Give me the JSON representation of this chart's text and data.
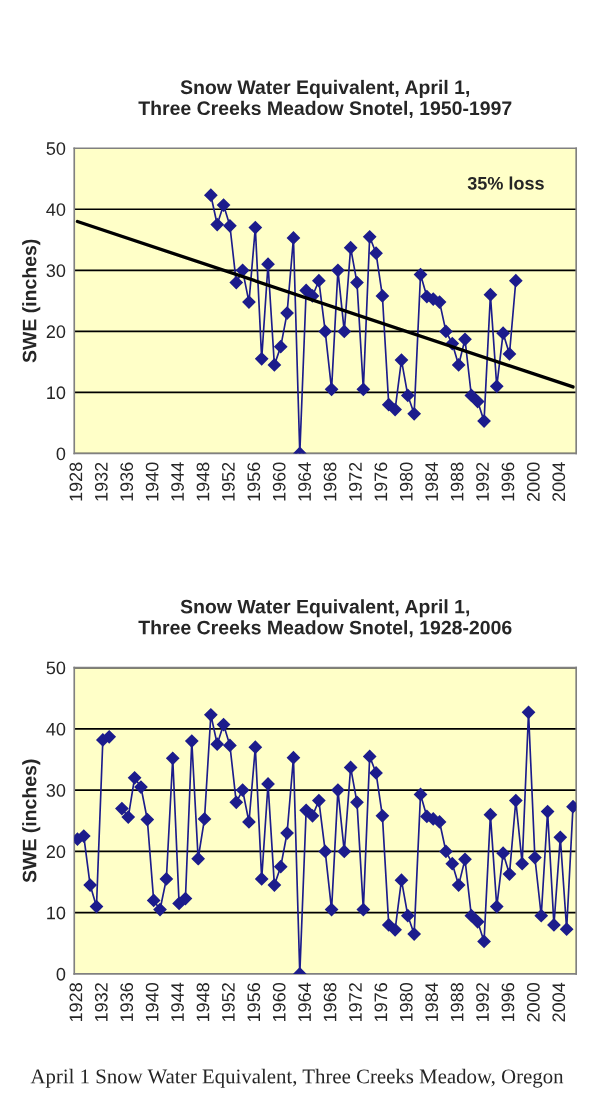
{
  "chart_data": [
    {
      "type": "line",
      "title": "Snow Water Equivalent, April 1,\nThree Creeks Meadow Snotel, 1950-1997",
      "ylabel": "SWE (inches)",
      "xlim": [
        1927.5,
        2006.5
      ],
      "xticks": [
        1928,
        1932,
        1936,
        1940,
        1944,
        1948,
        1952,
        1956,
        1960,
        1964,
        1968,
        1972,
        1976,
        1980,
        1984,
        1988,
        1992,
        1996,
        2000,
        2004
      ],
      "ylim": [
        0,
        50
      ],
      "yticks": [
        0,
        10,
        20,
        30,
        40,
        50
      ],
      "grid": "y",
      "legend": false,
      "annotations": [
        "35% loss"
      ],
      "series": [
        {
          "color": "#1c1c8c",
          "marker": "diamond",
          "x": [
            1949,
            1950,
            1951,
            1952,
            1953,
            1954,
            1955,
            1956,
            1957,
            1958,
            1959,
            1960,
            1961,
            1962,
            1963,
            1964,
            1965,
            1966,
            1967,
            1968,
            1969,
            1970,
            1971,
            1972,
            1973,
            1974,
            1975,
            1976,
            1977,
            1978,
            1979,
            1980,
            1981,
            1982,
            1983,
            1984,
            1985,
            1986,
            1987,
            1988,
            1989,
            1990,
            1991,
            1992,
            1993,
            1994,
            1995,
            1996,
            1997
          ],
          "values": [
            42.3,
            37.5,
            40.7,
            37.3,
            28,
            30,
            24.8,
            37,
            15.5,
            31,
            14.5,
            17.5,
            23,
            35.3,
            0,
            26.7,
            25.8,
            28.3,
            20,
            10.5,
            30,
            20,
            33.7,
            28,
            10.5,
            35.5,
            32.8,
            25.8,
            8,
            7.2,
            15.3,
            9.5,
            6.5,
            29.3,
            25.7,
            25.3,
            24.8,
            20,
            18,
            14.5,
            18.7,
            9.5,
            8.5,
            5.3,
            26,
            11,
            19.7,
            16.3,
            28.3
          ]
        },
        {
          "color": "#000000",
          "marker": "none",
          "x": [
            1928,
            2006
          ],
          "values": [
            38,
            10.9
          ]
        }
      ]
    },
    {
      "type": "line",
      "title": "Snow Water Equivalent, April 1,\nThree Creeks Meadow Snotel, 1928-2006",
      "ylabel": "SWE (inches)",
      "xlim": [
        1927.5,
        2006.5
      ],
      "xticks": [
        1928,
        1932,
        1936,
        1940,
        1944,
        1948,
        1952,
        1956,
        1960,
        1964,
        1968,
        1972,
        1976,
        1980,
        1984,
        1988,
        1992,
        1996,
        2000,
        2004
      ],
      "ylim": [
        0,
        50
      ],
      "yticks": [
        0,
        10,
        20,
        30,
        40,
        50
      ],
      "grid": "y",
      "legend": false,
      "annotations": [
        "April 1 Snow Water Equivalent, Three Creeks Meadow, Oregon"
      ],
      "series": [
        {
          "color": "#1c1c8c",
          "marker": "diamond",
          "x": [
            1928,
            1929,
            1930,
            1931,
            1932,
            1933,
            1934,
            1935,
            1936,
            1937,
            1938,
            1939,
            1940,
            1941,
            1942,
            1943,
            1944,
            1945,
            1946,
            1947,
            1948,
            1949,
            1950,
            1951,
            1952,
            1953,
            1954,
            1955,
            1956,
            1957,
            1958,
            1959,
            1960,
            1961,
            1962,
            1963,
            1964,
            1965,
            1966,
            1967,
            1968,
            1969,
            1970,
            1971,
            1972,
            1973,
            1974,
            1975,
            1976,
            1977,
            1978,
            1979,
            1980,
            1981,
            1982,
            1983,
            1984,
            1985,
            1986,
            1987,
            1988,
            1989,
            1990,
            1991,
            1992,
            1993,
            1994,
            1995,
            1996,
            1997,
            1998,
            1999,
            2000,
            2001,
            2002,
            2003,
            2004,
            2005,
            2006
          ],
          "values": [
            22,
            22.5,
            14.5,
            11,
            38.2,
            38.7,
            null,
            27,
            25.6,
            32,
            30.5,
            25.2,
            12,
            10.5,
            15.5,
            35.2,
            11.5,
            12.3,
            38,
            18.8,
            25.3,
            42.3,
            37.5,
            40.7,
            37.3,
            28,
            30,
            24.8,
            37,
            15.5,
            31,
            14.5,
            17.5,
            23,
            35.3,
            0,
            26.7,
            25.8,
            28.3,
            20,
            10.5,
            30,
            20,
            33.7,
            28,
            10.5,
            35.5,
            32.8,
            25.8,
            8,
            7.2,
            15.3,
            9.5,
            6.5,
            29.3,
            25.7,
            25.3,
            24.8,
            20,
            18,
            14.5,
            18.7,
            9.5,
            8.5,
            5.3,
            26,
            11,
            19.7,
            16.3,
            28.3,
            18,
            42.7,
            19,
            9.5,
            26.5,
            8,
            22.3,
            7.3,
            27.3
          ]
        }
      ]
    }
  ]
}
